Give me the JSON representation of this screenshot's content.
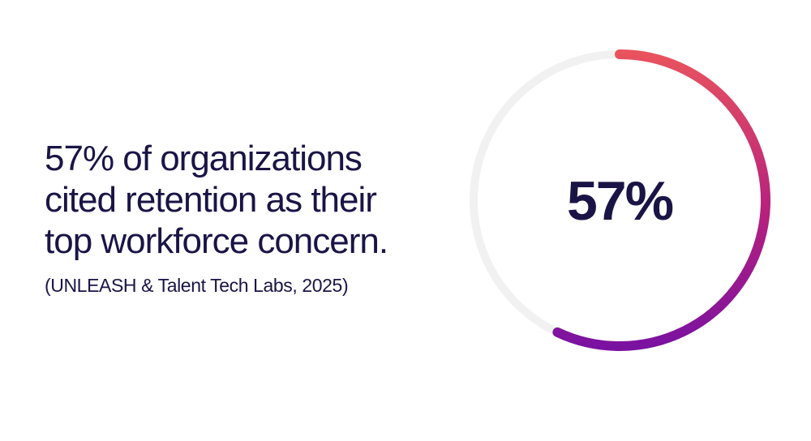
{
  "headline": {
    "lines": [
      "57% of organizations",
      "cited retention as their",
      "top workforce concern."
    ]
  },
  "citation": "(UNLEASH & Talent Tech Labs, 2025)",
  "chart_data": {
    "type": "pie",
    "style": "donut",
    "value_percent": 57,
    "center_label": "57%",
    "categories": [
      ""
    ],
    "values": [
      57
    ],
    "colors": {
      "track": "#f1f1f1",
      "gradient_start": "#e8535e",
      "gradient_mid": "#b5207e",
      "gradient_end": "#7a12a0",
      "text": "#1a1446"
    }
  }
}
